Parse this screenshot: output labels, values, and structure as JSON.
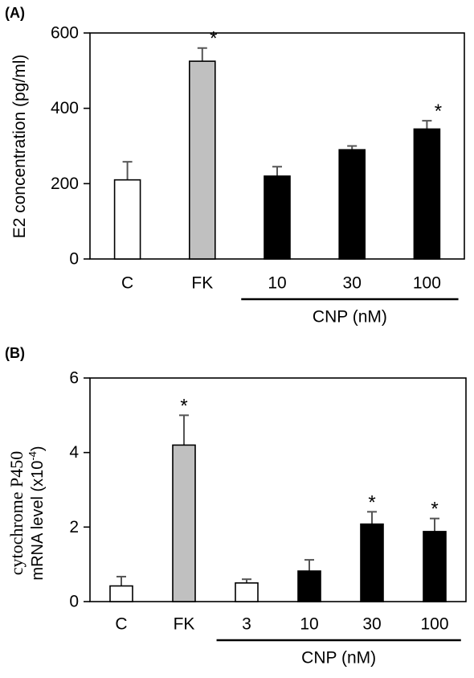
{
  "chart_data": [
    {
      "type": "bar",
      "panel_label": "(A)",
      "ylabel": "E2 concentration (pg/ml)",
      "ylim": [
        0,
        600
      ],
      "yticks": [
        0,
        200,
        400,
        600
      ],
      "categories": [
        "C",
        "FK",
        "10",
        "30",
        "100"
      ],
      "values": [
        210,
        525,
        220,
        290,
        345
      ],
      "errors": [
        48,
        35,
        25,
        10,
        22
      ],
      "colors": [
        "#ffffff",
        "#c0c0c0",
        "#000000",
        "#000000",
        "#000000"
      ],
      "significance": [
        "",
        "*",
        "",
        "",
        "*"
      ],
      "group_label": "CNP (nM)",
      "group_from": 2,
      "group_to": 4
    },
    {
      "type": "bar",
      "panel_label": "(B)",
      "ylabel_line1": "cytochrome P450",
      "ylabel_line2": "mRNA level (x10",
      "ylabel_sup": "-4",
      "ylabel_end": ")",
      "ylim": [
        0,
        6
      ],
      "yticks": [
        0,
        2,
        4,
        6
      ],
      "categories": [
        "C",
        "FK",
        "3",
        "10",
        "30",
        "100"
      ],
      "values": [
        0.42,
        4.2,
        0.5,
        0.82,
        2.08,
        1.88
      ],
      "errors": [
        0.25,
        0.8,
        0.1,
        0.3,
        0.33,
        0.35
      ],
      "colors": [
        "#ffffff",
        "#c0c0c0",
        "#ffffff",
        "#000000",
        "#000000",
        "#000000"
      ],
      "significance": [
        "",
        "*",
        "",
        "",
        "*",
        "*"
      ],
      "group_label": "CNP (nM)",
      "group_from": 2,
      "group_to": 5
    }
  ]
}
